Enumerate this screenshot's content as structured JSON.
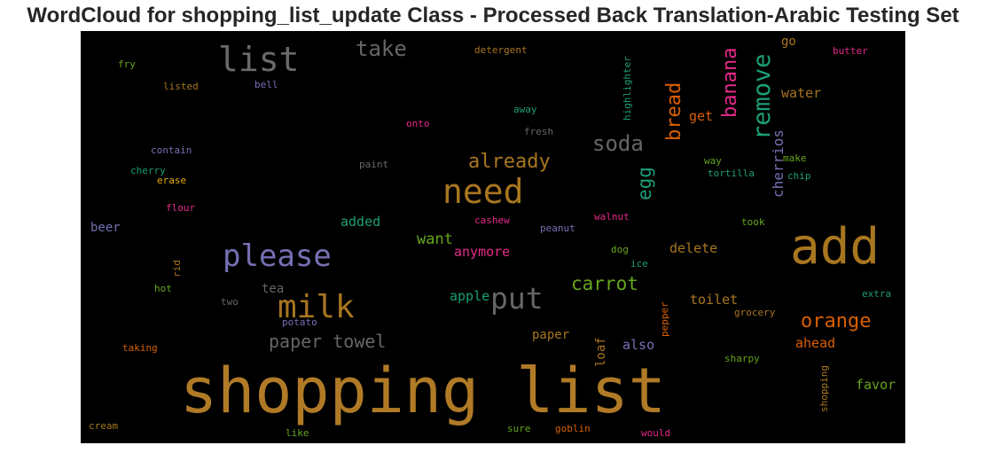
{
  "chart_data": {
    "type": "wordcloud",
    "title": "WordCloud for shopping_list_update Class - Processed Back Translation-Arabic Testing Set",
    "background": "#000000",
    "words": [
      {
        "text": "shopping list",
        "color": "#b07a26"
      },
      {
        "text": "add",
        "color": "#a8761f"
      },
      {
        "text": "need",
        "color": "#a8761f"
      },
      {
        "text": "list",
        "color": "#6a6a6a"
      },
      {
        "text": "please",
        "color": "#7570b3"
      },
      {
        "text": "milk",
        "color": "#a8761f"
      },
      {
        "text": "put",
        "color": "#666666"
      },
      {
        "text": "remove",
        "color": "#1b9e77"
      },
      {
        "text": "banana",
        "color": "#e7298a"
      },
      {
        "text": "bread",
        "color": "#d95f02"
      },
      {
        "text": "take",
        "color": "#666666"
      },
      {
        "text": "soda",
        "color": "#666666"
      },
      {
        "text": "already",
        "color": "#a8761f"
      },
      {
        "text": "egg",
        "color": "#1b9e77"
      },
      {
        "text": "orange",
        "color": "#d95f02"
      },
      {
        "text": "carrot",
        "color": "#66a61e"
      },
      {
        "text": "paper towel",
        "color": "#666666"
      },
      {
        "text": "cherrios",
        "color": "#7570b3"
      },
      {
        "text": "want",
        "color": "#66a61e"
      },
      {
        "text": "anymore",
        "color": "#e7298a"
      },
      {
        "text": "delete",
        "color": "#a8761f"
      },
      {
        "text": "get",
        "color": "#d95f02"
      },
      {
        "text": "water",
        "color": "#a8761f"
      },
      {
        "text": "go",
        "color": "#a8761f"
      },
      {
        "text": "ahead",
        "color": "#d95f02"
      },
      {
        "text": "toilet",
        "color": "#a8761f"
      },
      {
        "text": "favor",
        "color": "#66a61e"
      },
      {
        "text": "added",
        "color": "#1b9e77"
      },
      {
        "text": "apple",
        "color": "#1b9e77"
      },
      {
        "text": "paper",
        "color": "#a8761f"
      },
      {
        "text": "also",
        "color": "#7570b3"
      },
      {
        "text": "loaf",
        "color": "#a8761f"
      },
      {
        "text": "tea",
        "color": "#666666"
      },
      {
        "text": "beer",
        "color": "#7570b3"
      },
      {
        "text": "detergent",
        "color": "#a8761f"
      },
      {
        "text": "butter",
        "color": "#e7298a"
      },
      {
        "text": "highlighter",
        "color": "#1b9e77"
      },
      {
        "text": "fry",
        "color": "#66a61e"
      },
      {
        "text": "listed",
        "color": "#a8761f"
      },
      {
        "text": "bell",
        "color": "#7570b3"
      },
      {
        "text": "away",
        "color": "#1b9e77"
      },
      {
        "text": "onto",
        "color": "#e7298a"
      },
      {
        "text": "fresh",
        "color": "#666666"
      },
      {
        "text": "contain",
        "color": "#7570b3"
      },
      {
        "text": "paint",
        "color": "#666666"
      },
      {
        "text": "way",
        "color": "#66a61e"
      },
      {
        "text": "make",
        "color": "#66a61e"
      },
      {
        "text": "tortilla",
        "color": "#1b9e77"
      },
      {
        "text": "chip",
        "color": "#1b9e77"
      },
      {
        "text": "cherry",
        "color": "#1b9e77"
      },
      {
        "text": "erase",
        "color": "#e6ab02"
      },
      {
        "text": "flour",
        "color": "#e7298a"
      },
      {
        "text": "cashew",
        "color": "#e7298a"
      },
      {
        "text": "walnut",
        "color": "#e7298a"
      },
      {
        "text": "peanut",
        "color": "#7570b3"
      },
      {
        "text": "took",
        "color": "#66a61e"
      },
      {
        "text": "dog",
        "color": "#66a61e"
      },
      {
        "text": "ice",
        "color": "#1b9e77"
      },
      {
        "text": "rid",
        "color": "#a8761f"
      },
      {
        "text": "hot",
        "color": "#66a61e"
      },
      {
        "text": "two",
        "color": "#666666"
      },
      {
        "text": "potato",
        "color": "#7570b3"
      },
      {
        "text": "pepper",
        "color": "#d95f02"
      },
      {
        "text": "grocery",
        "color": "#a8761f"
      },
      {
        "text": "extra",
        "color": "#1b9e77"
      },
      {
        "text": "taking",
        "color": "#d95f02"
      },
      {
        "text": "sharpy",
        "color": "#66a61e"
      },
      {
        "text": "shopping",
        "color": "#a8761f"
      },
      {
        "text": "cream",
        "color": "#a8761f"
      },
      {
        "text": "like",
        "color": "#66a61e"
      },
      {
        "text": "sure",
        "color": "#66a61e"
      },
      {
        "text": "goblin",
        "color": "#d95f02"
      },
      {
        "text": "would",
        "color": "#e7298a"
      }
    ]
  }
}
